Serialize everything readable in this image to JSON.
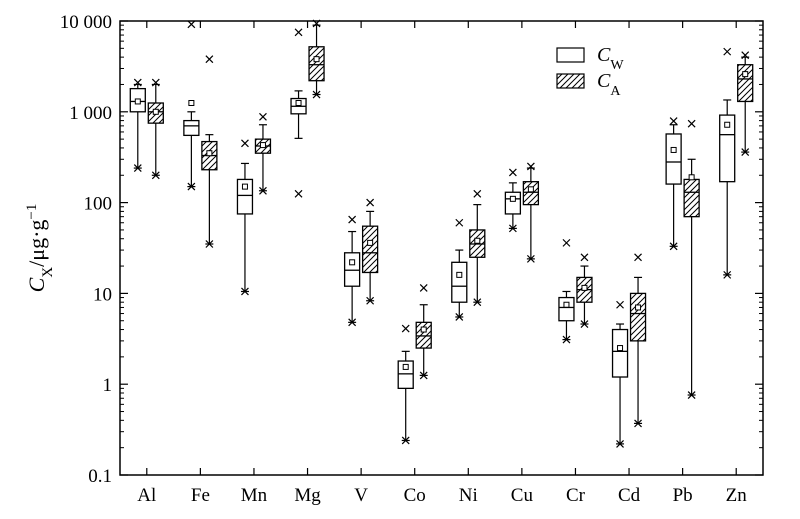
{
  "chart_data": {
    "type": "box",
    "yscale": "log",
    "ylim": [
      0.1,
      10000
    ],
    "yticks": [
      {
        "value": 0.1,
        "label": "0.1"
      },
      {
        "value": 1,
        "label": "1"
      },
      {
        "value": 10,
        "label": "10"
      },
      {
        "value": 100,
        "label": "100"
      },
      {
        "value": 1000,
        "label": "1 000"
      },
      {
        "value": 10000,
        "label": "10 000"
      }
    ],
    "ylabel": {
      "main": "C",
      "sub": "X",
      "unit": "/μg·g",
      "sup": "−1"
    },
    "categories": [
      "Al",
      "Fe",
      "Mn",
      "Mg",
      "V",
      "Co",
      "Ni",
      "Cu",
      "Cr",
      "Cd",
      "Pb",
      "Zn"
    ],
    "legend": {
      "placement": "top-right",
      "items": [
        {
          "main": "C",
          "sub": "W",
          "pattern": "open"
        },
        {
          "main": "C",
          "sub": "A",
          "pattern": "hatched"
        }
      ]
    },
    "series": [
      {
        "key": "CW",
        "pattern": "open",
        "boxes": [
          {
            "min": 240,
            "q1": 1000,
            "median": 1300,
            "q3": 1800,
            "max": 2000,
            "mean": 1300,
            "outliers": [
              2100,
              240
            ]
          },
          {
            "min": 150,
            "q1": 550,
            "median": 700,
            "q3": 800,
            "max": 1000,
            "mean": 1250,
            "outliers": [
              9200,
              150
            ]
          },
          {
            "min": 10.5,
            "q1": 75,
            "median": 120,
            "q3": 180,
            "max": 270,
            "mean": 150,
            "outliers": [
              450,
              10.5
            ]
          },
          {
            "min": 510,
            "q1": 950,
            "median": 1150,
            "q3": 1400,
            "max": 1700,
            "mean": 1250,
            "outliers": [
              7500,
              125
            ]
          },
          {
            "min": 4.8,
            "q1": 12,
            "median": 18,
            "q3": 28,
            "max": 48,
            "mean": 22,
            "outliers": [
              65,
              4.8
            ]
          },
          {
            "min": 0.24,
            "q1": 0.9,
            "median": 1.3,
            "q3": 1.8,
            "max": 2.3,
            "mean": 1.55,
            "outliers": [
              4.1,
              0.24
            ]
          },
          {
            "min": 5.5,
            "q1": 8,
            "median": 12,
            "q3": 22,
            "max": 30,
            "mean": 16,
            "outliers": [
              60,
              5.5
            ]
          },
          {
            "min": 52,
            "q1": 75,
            "median": 110,
            "q3": 130,
            "max": 165,
            "mean": 110,
            "outliers": [
              215,
              52
            ]
          },
          {
            "min": 3.1,
            "q1": 5,
            "median": 7,
            "q3": 9,
            "max": 10.5,
            "mean": 7.5,
            "outliers": [
              36,
              3.1
            ]
          },
          {
            "min": 0.22,
            "q1": 1.2,
            "median": 2.3,
            "q3": 4,
            "max": 4.6,
            "mean": 2.5,
            "outliers": [
              7.5,
              0.22
            ]
          },
          {
            "min": 33,
            "q1": 160,
            "median": 280,
            "q3": 570,
            "max": 720,
            "mean": 380,
            "outliers": [
              790,
              33
            ]
          },
          {
            "min": 16,
            "q1": 170,
            "median": 560,
            "q3": 920,
            "max": 1350,
            "mean": 720,
            "outliers": [
              4600,
              16
            ]
          }
        ]
      },
      {
        "key": "CA",
        "pattern": "hatched",
        "boxes": [
          {
            "min": 200,
            "q1": 750,
            "median": 1000,
            "q3": 1250,
            "max": 2000,
            "mean": 1000,
            "outliers": [
              2100,
              200
            ]
          },
          {
            "min": 35,
            "q1": 230,
            "median": 330,
            "q3": 470,
            "max": 560,
            "mean": 350,
            "outliers": [
              3800,
              35
            ]
          },
          {
            "min": 135,
            "q1": 350,
            "median": 420,
            "q3": 500,
            "max": 720,
            "mean": 430,
            "outliers": [
              880,
              135
            ]
          },
          {
            "min": 1550,
            "q1": 2200,
            "median": 3300,
            "q3": 5200,
            "max": 9000,
            "mean": 3800,
            "outliers": [
              9400,
              1550
            ]
          },
          {
            "min": 8.3,
            "q1": 17,
            "median": 28,
            "q3": 55,
            "max": 80,
            "mean": 36,
            "outliers": [
              100,
              8.3
            ]
          },
          {
            "min": 1.25,
            "q1": 2.5,
            "median": 3.4,
            "q3": 4.8,
            "max": 7.5,
            "mean": 4,
            "outliers": [
              11.5,
              1.25
            ]
          },
          {
            "min": 8,
            "q1": 25,
            "median": 35,
            "q3": 50,
            "max": 95,
            "mean": 38,
            "outliers": [
              125,
              8
            ]
          },
          {
            "min": 24,
            "q1": 95,
            "median": 130,
            "q3": 170,
            "max": 240,
            "mean": 140,
            "outliers": [
              250,
              24
            ]
          },
          {
            "min": 4.6,
            "q1": 8,
            "median": 11,
            "q3": 15,
            "max": 20,
            "mean": 11.5,
            "outliers": [
              25,
              4.6
            ]
          },
          {
            "min": 0.37,
            "q1": 3,
            "median": 6,
            "q3": 10,
            "max": 15,
            "mean": 7,
            "outliers": [
              25,
              0.37
            ]
          },
          {
            "min": 0.76,
            "q1": 70,
            "median": 130,
            "q3": 180,
            "max": 300,
            "mean": 190,
            "outliers": [
              740,
              0.76
            ]
          },
          {
            "min": 360,
            "q1": 1300,
            "median": 2300,
            "q3": 3300,
            "max": 4000,
            "mean": 2600,
            "outliers": [
              4200,
              360
            ]
          }
        ]
      }
    ]
  }
}
